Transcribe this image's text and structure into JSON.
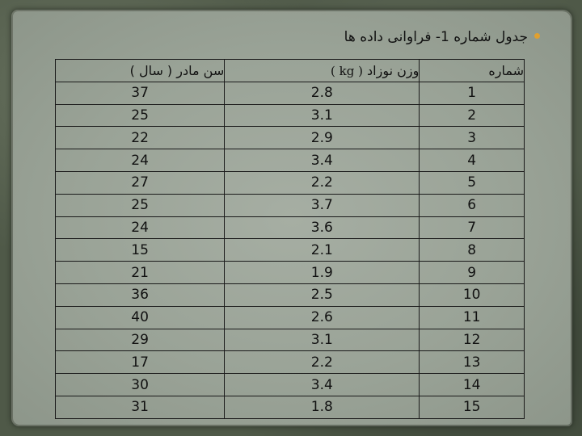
{
  "title": "جدول شماره 1- فراوانی داده ها",
  "table": {
    "headers": {
      "age": "سن مادر ( سال )",
      "weight_prefix": "وزن نوزاد",
      "weight_unit": "( kg )",
      "number": "شماره"
    },
    "rows": [
      {
        "age": "37",
        "weight": "2.8",
        "num": "1"
      },
      {
        "age": "25",
        "weight": "3.1",
        "num": "2"
      },
      {
        "age": "22",
        "weight": "2.9",
        "num": "3"
      },
      {
        "age": "24",
        "weight": "3.4",
        "num": "4"
      },
      {
        "age": "27",
        "weight": "2.2",
        "num": "5"
      },
      {
        "age": "25",
        "weight": "3.7",
        "num": "6"
      },
      {
        "age": "24",
        "weight": "3.6",
        "num": "7"
      },
      {
        "age": "15",
        "weight": "2.1",
        "num": "8"
      },
      {
        "age": "21",
        "weight": "1.9",
        "num": "9"
      },
      {
        "age": "36",
        "weight": "2.5",
        "num": "10"
      },
      {
        "age": "40",
        "weight": "2.6",
        "num": "11"
      },
      {
        "age": "29",
        "weight": "3.1",
        "num": "12"
      },
      {
        "age": "17",
        "weight": "2.2",
        "num": "13"
      },
      {
        "age": "30",
        "weight": "3.4",
        "num": "14"
      },
      {
        "age": "31",
        "weight": "1.8",
        "num": "15"
      }
    ]
  },
  "colors": {
    "bullet": "#e0a030",
    "paper": "#9aa397",
    "frame": "#4f5948"
  }
}
